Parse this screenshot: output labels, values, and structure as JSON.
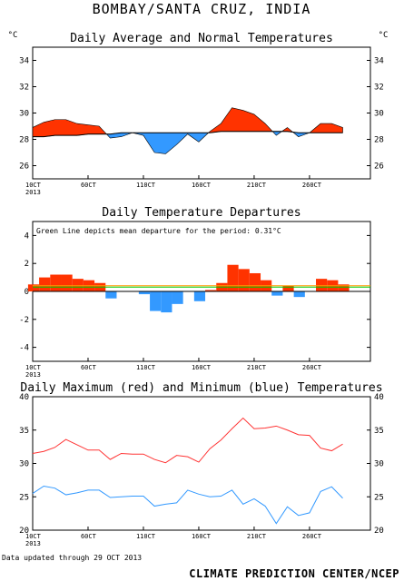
{
  "page": {
    "title": "BOMBAY/SANTA CRUZ, INDIA",
    "footer_left": "Data updated through 29 OCT 2013",
    "footer_right": "CLIMATE PREDICTION CENTER/NCEP"
  },
  "chart_data": [
    {
      "type": "area",
      "title": "Daily Average and Normal Temperatures",
      "ylabel_left": "°C",
      "ylabel_right": "°C",
      "ylim": [
        25,
        35
      ],
      "yticks": [
        26,
        28,
        30,
        32,
        34
      ],
      "xticks": [
        "10CT\n2013",
        "60CT",
        "110CT",
        "160CT",
        "210CT",
        "260CT"
      ],
      "x": [
        1,
        2,
        3,
        4,
        5,
        6,
        7,
        8,
        9,
        10,
        11,
        12,
        13,
        14,
        15,
        16,
        17,
        18,
        19,
        20,
        21,
        22,
        23,
        24,
        25,
        26,
        27,
        28,
        29
      ],
      "series": [
        {
          "name": "average",
          "color": "#ff3300",
          "values": [
            28.9,
            29.3,
            29.5,
            29.5,
            29.2,
            29.1,
            29.0,
            28.1,
            28.2,
            28.5,
            28.3,
            27.0,
            26.9,
            27.6,
            28.4,
            27.8,
            28.6,
            29.2,
            30.4,
            30.2,
            29.9,
            29.2,
            28.3,
            28.9,
            28.2,
            28.5,
            29.2,
            29.2,
            28.9
          ]
        },
        {
          "name": "normal",
          "color": "#000000",
          "values": [
            28.2,
            28.2,
            28.3,
            28.3,
            28.3,
            28.4,
            28.4,
            28.4,
            28.5,
            28.5,
            28.5,
            28.5,
            28.5,
            28.5,
            28.5,
            28.5,
            28.5,
            28.6,
            28.6,
            28.6,
            28.6,
            28.6,
            28.6,
            28.6,
            28.5,
            28.5,
            28.5,
            28.5,
            28.5
          ]
        }
      ],
      "fill_above_color": "#ff3300",
      "fill_below_color": "#3399ff"
    },
    {
      "type": "bar",
      "title": "Daily Temperature Departures",
      "annotation": "Green Line depicts mean departure for the period: 0.31°C",
      "mean_departure": 0.31,
      "ylim": [
        -5,
        5
      ],
      "yticks": [
        -4,
        -2,
        0,
        2,
        4
      ],
      "xticks": [
        "10CT\n2013",
        "60CT",
        "110CT",
        "160CT",
        "210CT",
        "260CT"
      ],
      "x": [
        1,
        2,
        3,
        4,
        5,
        6,
        7,
        8,
        9,
        10,
        11,
        12,
        13,
        14,
        15,
        16,
        17,
        18,
        19,
        20,
        21,
        22,
        23,
        24,
        25,
        26,
        27,
        28,
        29
      ],
      "values": [
        0.5,
        1.0,
        1.2,
        1.2,
        0.9,
        0.8,
        0.6,
        -0.5,
        0.0,
        0.0,
        -0.2,
        -1.4,
        -1.5,
        -0.9,
        0.0,
        -0.7,
        0.1,
        0.6,
        1.9,
        1.6,
        1.3,
        0.8,
        -0.3,
        0.4,
        -0.4,
        0.0,
        0.9,
        0.8,
        0.5
      ],
      "positive_color": "#ff3300",
      "negative_color": "#3399ff",
      "mean_line_color": "#00cc00",
      "zero_line_color": "#ff9900"
    },
    {
      "type": "line",
      "title": "Daily Maximum (red) and Minimum (blue) Temperatures",
      "ylim": [
        20,
        40
      ],
      "yticks": [
        20,
        25,
        30,
        35,
        40
      ],
      "xticks": [
        "10CT\n2013",
        "60CT",
        "110CT",
        "160CT",
        "210CT",
        "260CT"
      ],
      "x": [
        1,
        2,
        3,
        4,
        5,
        6,
        7,
        8,
        9,
        10,
        11,
        12,
        13,
        14,
        15,
        16,
        17,
        18,
        19,
        20,
        21,
        22,
        23,
        24,
        25,
        26,
        27,
        28,
        29
      ],
      "series": [
        {
          "name": "maximum",
          "color": "#ff3333",
          "values": [
            31.5,
            31.8,
            32.4,
            33.6,
            32.8,
            32.0,
            32.0,
            30.6,
            31.5,
            31.4,
            31.4,
            30.6,
            30.1,
            31.2,
            31.0,
            30.2,
            32.2,
            33.5,
            35.2,
            36.8,
            35.2,
            35.3,
            35.6,
            35.0,
            34.3,
            34.2,
            32.3,
            31.9,
            32.9
          ]
        },
        {
          "name": "minimum",
          "color": "#3399ff",
          "values": [
            25.5,
            26.6,
            26.3,
            25.3,
            25.6,
            26.0,
            26.0,
            24.9,
            25.0,
            25.1,
            25.1,
            23.6,
            23.9,
            24.1,
            26.0,
            25.4,
            25.0,
            25.1,
            26.0,
            23.9,
            24.7,
            23.6,
            21.0,
            23.5,
            22.2,
            22.6,
            25.8,
            26.5,
            24.8
          ]
        }
      ]
    }
  ]
}
